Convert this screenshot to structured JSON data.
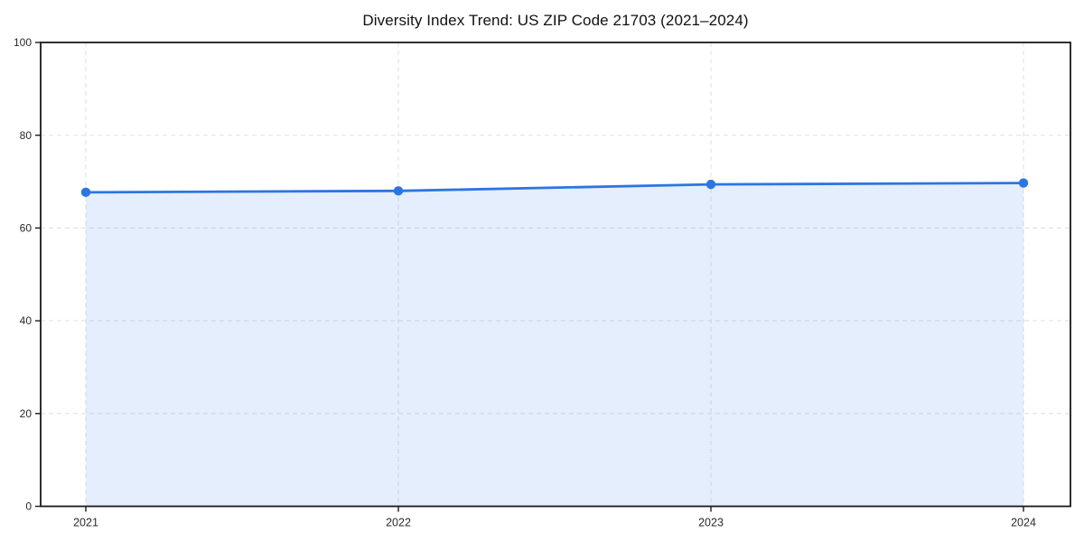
{
  "chart_data": {
    "type": "area",
    "title": "Diversity Index Trend: US ZIP Code 21703 (2021–2024)",
    "categories": [
      "2021",
      "2022",
      "2023",
      "2024"
    ],
    "series": [
      {
        "name": "Diversity Index",
        "values": [
          67.7,
          68.0,
          69.4,
          69.7
        ]
      }
    ],
    "xlabel": "",
    "ylabel": "",
    "ylim": [
      0,
      100
    ],
    "yticks": [
      0,
      20,
      40,
      60,
      80,
      100
    ],
    "grid": true,
    "grid_style": "dashed",
    "legend": false,
    "colors": {
      "line": "#2b76e3",
      "marker": "#2b76e3",
      "fill": "#2b76e3",
      "fill_opacity": 0.12,
      "grid": "#e2e2e2",
      "axis": "#1a1a1a",
      "tick_label": "#2b2b2b",
      "title": "#111111",
      "background": "#ffffff"
    }
  }
}
